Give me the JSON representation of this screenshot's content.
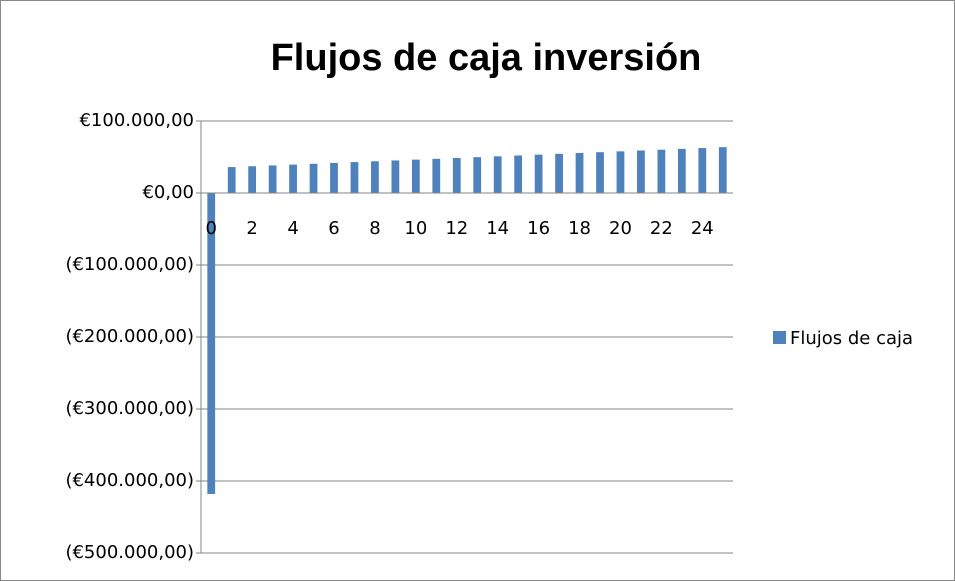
{
  "chart_data": {
    "type": "bar",
    "title": "Flujos de caja inversión",
    "categories": [
      "0",
      null,
      "2",
      null,
      "4",
      null,
      "6",
      null,
      "8",
      null,
      "10",
      null,
      "12",
      null,
      "14",
      null,
      "16",
      null,
      "18",
      null,
      "20",
      null,
      "22",
      null,
      "24",
      null
    ],
    "series": [
      {
        "name": "Flujos de caja",
        "color": "#4f81bd",
        "values": [
          -418000,
          36000,
          37150,
          38300,
          39450,
          40600,
          41750,
          42900,
          44050,
          45200,
          46350,
          47500,
          48650,
          49800,
          50950,
          52100,
          53250,
          54400,
          55550,
          56700,
          57850,
          59000,
          60150,
          61300,
          62450,
          63600
        ]
      }
    ],
    "ylim": [
      -500000,
      100000
    ],
    "yticks": [
      {
        "value": -500000,
        "label": "(€500.000,00)"
      },
      {
        "value": -400000,
        "label": "(€400.000,00)"
      },
      {
        "value": -300000,
        "label": "(€300.000,00)"
      },
      {
        "value": -200000,
        "label": "(€200.000,00)"
      },
      {
        "value": -100000,
        "label": "(€100.000,00)"
      },
      {
        "value": 0,
        "label": "€0,00"
      },
      {
        "value": 100000,
        "label": "€100.000,00"
      }
    ],
    "grid": true,
    "legend": "right",
    "negative_tick_color": "#ff0000"
  }
}
